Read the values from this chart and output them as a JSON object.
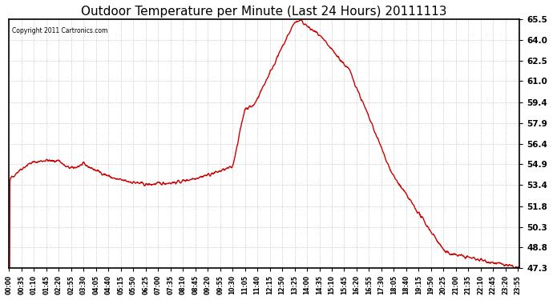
{
  "title": "Outdoor Temperature per Minute (Last 24 Hours) 20111113",
  "copyright": "Copyright 2011 Cartronics.com",
  "line_color": "#cc0000",
  "bg_color": "#ffffff",
  "grid_color": "#aaaaaa",
  "yticks": [
    47.3,
    48.8,
    50.3,
    51.8,
    53.4,
    54.9,
    56.4,
    57.9,
    59.4,
    61.0,
    62.5,
    64.0,
    65.5
  ],
  "ylim": [
    47.3,
    65.5
  ],
  "title_fontsize": 11,
  "x_labels": [
    "00:00",
    "00:35",
    "01:10",
    "01:45",
    "02:20",
    "02:55",
    "03:30",
    "04:05",
    "04:40",
    "05:15",
    "05:50",
    "06:25",
    "07:00",
    "07:35",
    "08:10",
    "08:45",
    "09:20",
    "09:55",
    "10:30",
    "11:05",
    "11:40",
    "12:15",
    "12:50",
    "13:25",
    "14:00",
    "14:35",
    "15:10",
    "15:45",
    "16:20",
    "16:55",
    "17:30",
    "18:05",
    "18:40",
    "19:15",
    "19:50",
    "20:25",
    "21:00",
    "21:35",
    "22:10",
    "22:45",
    "23:20",
    "23:55"
  ]
}
